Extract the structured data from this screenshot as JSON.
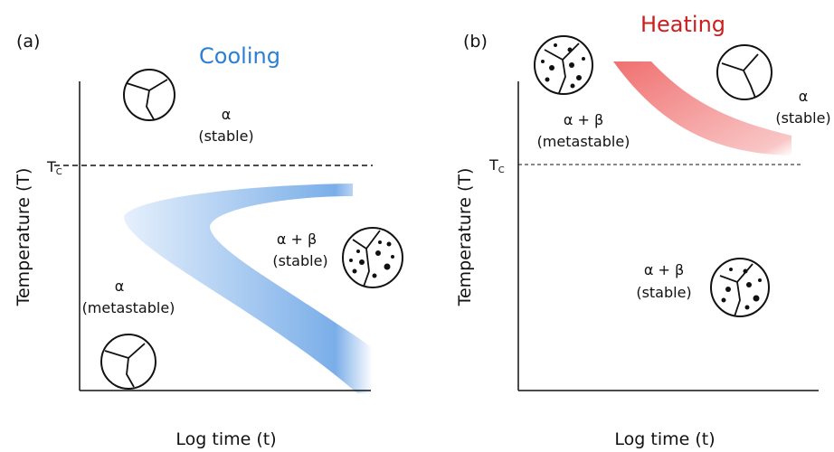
{
  "panels": [
    {
      "label": "(a)",
      "title": "Cooling",
      "y_axis": "Temperature (T)",
      "x_axis": "Log time (t)",
      "tc": {
        "main": "T",
        "sub": "C"
      },
      "regions": [
        {
          "phase": "α",
          "state": "(stable)"
        },
        {
          "phase": "α + β",
          "state": "(stable)"
        },
        {
          "phase": "α",
          "state": "(metastable)"
        }
      ]
    },
    {
      "label": "(b)",
      "title": "Heating",
      "y_axis": "Temperature (T)",
      "x_axis": "Log time (t)",
      "tc": {
        "main": "T",
        "sub": "C"
      },
      "regions": [
        {
          "phase": "α + β",
          "state": "(metastable)"
        },
        {
          "phase": "α",
          "state": "(stable)"
        },
        {
          "phase": "α + β",
          "state": "(stable)"
        }
      ]
    }
  ]
}
